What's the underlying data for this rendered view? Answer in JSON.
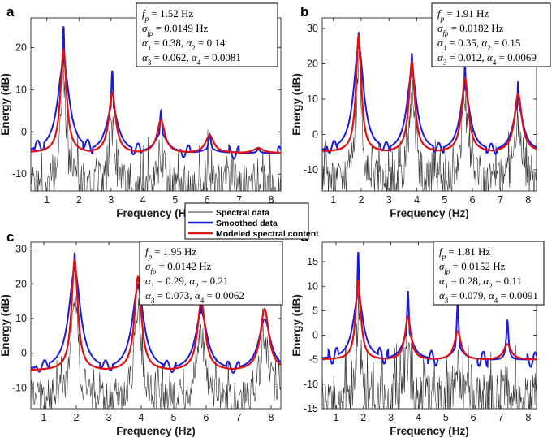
{
  "figure": {
    "legend": [
      {
        "label": "Spectral data",
        "color": "#333333"
      },
      {
        "label": "Smoothed data",
        "color": "#1a1adc"
      },
      {
        "label": "Modeled spectral content",
        "color": "#e01010"
      }
    ]
  },
  "colors": {
    "spectral": "#333333",
    "smoothed": "#1a1adc",
    "modeled": "#e01010"
  },
  "chart_data": [
    {
      "panel": "a",
      "type": "line",
      "xlabel": "Frequency (Hz)",
      "ylabel": "Energy (dB)",
      "xlim": [
        0.5,
        8.3
      ],
      "ylim": [
        -14,
        27
      ],
      "xticks": [
        1,
        2,
        3,
        4,
        5,
        6,
        7,
        8
      ],
      "yticks": [
        -10,
        0,
        10,
        20
      ],
      "fp": 1.52,
      "harmonics": 5,
      "annotation": [
        "1.52 Hz",
        "0.0149 Hz",
        "0.38,",
        "0.14",
        "0.062,",
        "0.0081"
      ],
      "modeled_peaks": [
        19.5,
        9.2,
        2.8,
        -0.8,
        -3.8
      ],
      "smoothed_peaks": [
        25.0,
        14.5,
        5.0,
        -0.5,
        -4.0
      ],
      "baseline": -5
    },
    {
      "panel": "b",
      "type": "line",
      "xlabel": "Frequency (Hz)",
      "ylabel": "Energy (dB)",
      "xlim": [
        0.6,
        8.3
      ],
      "ylim": [
        -16,
        33
      ],
      "xticks": [
        1,
        2,
        3,
        4,
        5,
        6,
        7,
        8
      ],
      "yticks": [
        -10,
        0,
        10,
        20,
        30
      ],
      "fp": 1.91,
      "harmonics": 4,
      "annotation": [
        "1.91 Hz",
        "0.0182 Hz",
        "0.35,",
        "0.15",
        "0.012,",
        "0.0069"
      ],
      "modeled_peaks": [
        28.0,
        20.5,
        16.0,
        11.5
      ],
      "smoothed_peaks": [
        29.0,
        23.0,
        19.5,
        15.0
      ],
      "baseline": -5
    },
    {
      "panel": "c",
      "type": "line",
      "xlabel": "Frequency (Hz)",
      "ylabel": "Energy (dB)",
      "xlim": [
        0.6,
        8.3
      ],
      "ylim": [
        -16,
        32
      ],
      "xticks": [
        1,
        2,
        3,
        4,
        5,
        6,
        7,
        8
      ],
      "yticks": [
        -10,
        0,
        10,
        20,
        30
      ],
      "fp": 1.95,
      "harmonics": 4,
      "annotation": [
        "1.95 Hz",
        "0.0142 Hz",
        "0.29,",
        "0.21",
        "0.073,",
        "0.0062"
      ],
      "modeled_peaks": [
        27.0,
        22.0,
        14.8,
        12.8
      ],
      "smoothed_peaks": [
        29.0,
        20.0,
        14.5,
        9.5
      ],
      "baseline": -5
    },
    {
      "panel": "d",
      "type": "line",
      "xlabel": "Frequency (Hz)",
      "ylabel": "Energy (dB)",
      "xlim": [
        0.5,
        8.3
      ],
      "ylim": [
        -15,
        19
      ],
      "xticks": [
        1,
        2,
        3,
        4,
        5,
        6,
        7,
        8
      ],
      "yticks": [
        -15,
        -10,
        -5,
        0,
        5,
        10,
        15
      ],
      "fp": 1.81,
      "harmonics": 4,
      "annotation": [
        "1.81 Hz",
        "0.0152 Hz",
        "0.28,",
        "0.11",
        "0.079,",
        "0.0091"
      ],
      "modeled_peaks": [
        11.2,
        3.8,
        0.8,
        -1.8
      ],
      "smoothed_peaks": [
        17.0,
        9.0,
        6.5,
        3.0
      ],
      "baseline": -5
    }
  ]
}
